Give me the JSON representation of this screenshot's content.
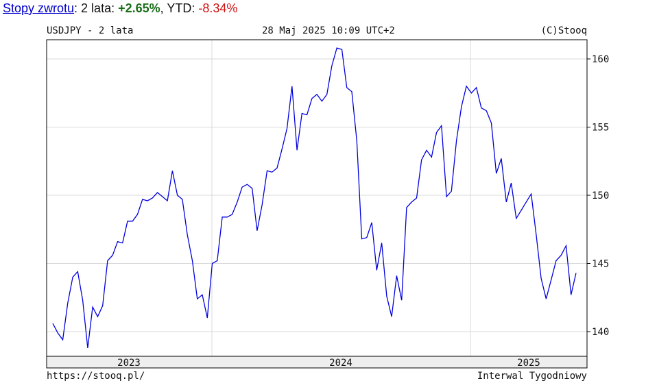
{
  "header": {
    "link": "Stopy zwrotu",
    "sep": ": 2 lata: ",
    "two_year": "+2.65%",
    "comma": ", YTD: ",
    "ytd": "-8.34%"
  },
  "chart_top": {
    "title": "USDJPY - 2 lata",
    "datetime": "28 Maj 2025 10:09 UTC+2",
    "copyright": "(C)Stooq"
  },
  "footer": {
    "url": "https://stooq.pl/",
    "interval": "Interwal Tygodniowy"
  },
  "colors": {
    "line": "#0000dd",
    "grid": "#d8d8d8",
    "axis_band": "#eeeeee"
  },
  "chart_data": {
    "type": "line",
    "title": "USDJPY - 2 lata",
    "ylim": [
      138.2,
      161.5
    ],
    "yticks": [
      140,
      145,
      150,
      155,
      160
    ],
    "xlabels": [
      "2023",
      "2024",
      "2025"
    ],
    "grid": true,
    "series": [
      {
        "values": [
          140.6,
          139.9,
          139.4,
          142.1,
          144.0,
          144.4,
          142.3,
          138.8,
          141.8,
          141.1,
          141.9,
          145.2,
          145.6,
          146.6,
          146.5,
          148.1,
          148.1,
          148.6,
          149.7,
          149.6,
          149.8,
          150.2,
          149.9,
          149.6,
          151.8,
          150.0,
          149.7,
          147.1,
          145.2,
          142.4,
          142.7,
          141.0,
          145.0,
          145.2,
          148.4,
          148.4,
          148.6,
          149.5,
          150.6,
          150.8,
          150.5,
          147.4,
          149.3,
          151.8,
          151.7,
          152.0,
          153.4,
          154.9,
          158.0,
          153.3,
          156.0,
          155.9,
          157.1,
          157.4,
          156.9,
          157.4,
          159.5,
          160.8,
          160.7,
          157.9,
          157.6,
          154.0,
          146.8,
          146.9,
          148.0,
          144.5,
          146.5,
          142.6,
          141.1,
          144.1,
          142.3,
          149.1,
          149.5,
          149.8,
          152.6,
          153.3,
          152.8,
          154.6,
          155.1,
          149.9,
          150.3,
          154.0,
          156.5,
          158.0,
          157.5,
          157.9,
          156.4,
          156.2,
          155.3,
          151.6,
          152.7,
          149.5,
          150.9,
          148.3,
          148.9,
          149.5,
          150.1,
          147.1,
          143.9,
          142.4,
          143.8,
          145.2,
          145.6,
          146.3,
          142.7,
          144.3
        ]
      }
    ]
  }
}
